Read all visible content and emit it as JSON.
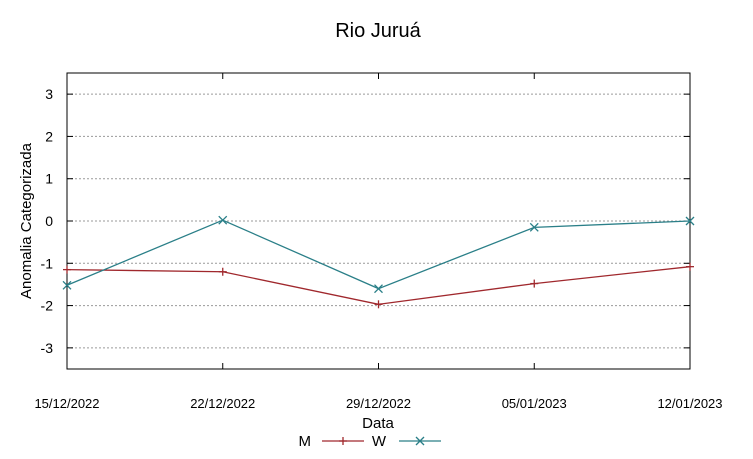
{
  "chart_data": {
    "type": "line",
    "title": "Rio Juruá",
    "xlabel": "Data",
    "ylabel": "Anomalia Categorizada",
    "x": [
      "15/12/2022",
      "22/12/2022",
      "29/12/2022",
      "05/01/2023",
      "12/01/2023"
    ],
    "ylim": [
      -3.5,
      3.5
    ],
    "yticks": [
      "3",
      "2",
      "1",
      "0",
      "-1",
      "-2",
      "-3"
    ],
    "grid": true,
    "legend_position": "bottom-center",
    "series": [
      {
        "name": "M",
        "color": "#a0282d",
        "marker": "plus",
        "values": [
          -1.15,
          -1.2,
          -1.97,
          -1.48,
          -1.08
        ]
      },
      {
        "name": "W",
        "color": "#2a7f88",
        "marker": "cross",
        "values": [
          -1.52,
          0.02,
          -1.6,
          -0.15,
          0.0
        ]
      }
    ]
  }
}
